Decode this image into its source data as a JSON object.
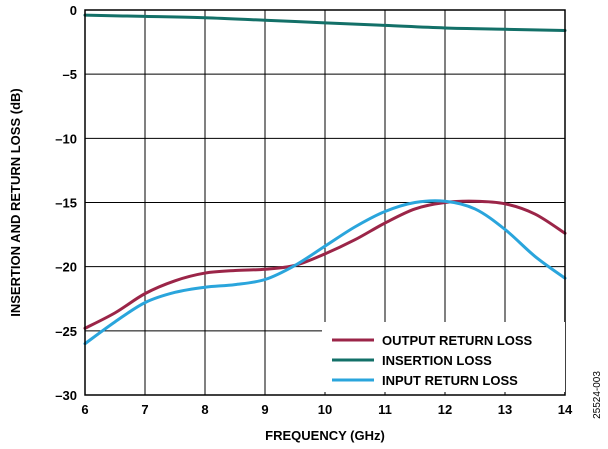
{
  "chart_data": {
    "type": "line",
    "xlabel": "FREQUENCY (GHz)",
    "ylabel": "INSERTION AND RETURN LOSS (dB)",
    "xlim": [
      6,
      14
    ],
    "ylim": [
      -30,
      0
    ],
    "xticks": [
      6,
      7,
      8,
      9,
      10,
      11,
      12,
      13,
      14
    ],
    "yticks": [
      0,
      -5,
      -10,
      -15,
      -20,
      -25,
      -30
    ],
    "ytick_labels": [
      "0",
      "–5",
      "–10",
      "–15",
      "–20",
      "–25",
      "–30"
    ],
    "grid": true,
    "legend_position": "bottom-right",
    "figure_id": "25524-003",
    "series": [
      {
        "name": "OUTPUT RETURN LOSS",
        "color": "#9b2548",
        "x": [
          6,
          6.5,
          7,
          7.5,
          8,
          8.5,
          9,
          9.5,
          10,
          10.5,
          11,
          11.5,
          12,
          12.5,
          13,
          13.5,
          14
        ],
        "y": [
          -24.8,
          -23.6,
          -22.1,
          -21.1,
          -20.5,
          -20.3,
          -20.2,
          -19.9,
          -19.0,
          -17.9,
          -16.6,
          -15.5,
          -15.0,
          -14.9,
          -15.1,
          -15.9,
          -17.4
        ]
      },
      {
        "name": "INSERTION LOSS",
        "color": "#137068",
        "x": [
          6,
          7,
          8,
          9,
          10,
          11,
          12,
          13,
          14
        ],
        "y": [
          -0.4,
          -0.5,
          -0.6,
          -0.8,
          -1.0,
          -1.2,
          -1.4,
          -1.5,
          -1.6
        ]
      },
      {
        "name": "INPUT RETURN LOSS",
        "color": "#2aa5dc",
        "x": [
          6,
          6.5,
          7,
          7.5,
          8,
          8.5,
          9,
          9.5,
          10,
          10.5,
          11,
          11.5,
          12,
          12.5,
          13,
          13.5,
          14
        ],
        "y": [
          -26.0,
          -24.3,
          -22.8,
          -22.0,
          -21.6,
          -21.4,
          -21.0,
          -19.9,
          -18.4,
          -16.9,
          -15.7,
          -15.0,
          -14.9,
          -15.5,
          -17.1,
          -19.2,
          -20.9
        ]
      }
    ]
  }
}
